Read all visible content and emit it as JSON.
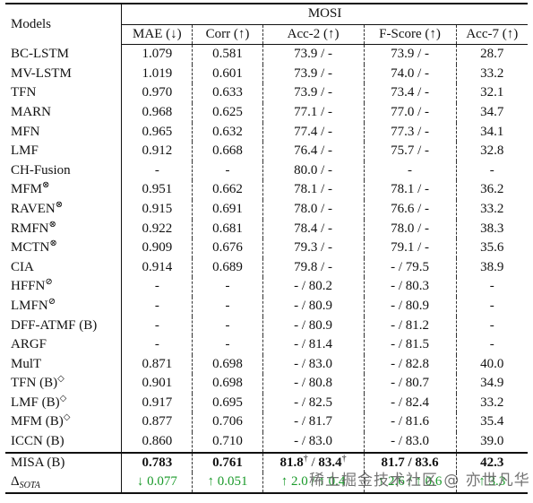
{
  "header": {
    "models": "Models",
    "group": "MOSI",
    "columns": [
      "MAE (↓)",
      "Corr (↑)",
      "Acc-2 (↑)",
      "F-Score (↑)",
      "Acc-7 (↑)"
    ]
  },
  "rows": [
    {
      "model": "BC-LSTM",
      "sup": "",
      "cells": [
        "1.079",
        "0.581",
        "73.9 / -",
        "73.9 / -",
        "28.7"
      ]
    },
    {
      "model": "MV-LSTM",
      "sup": "",
      "cells": [
        "1.019",
        "0.601",
        "73.9 / -",
        "74.0 / -",
        "33.2"
      ]
    },
    {
      "model": "TFN",
      "sup": "",
      "cells": [
        "0.970",
        "0.633",
        "73.9 / -",
        "73.4 / -",
        "32.1"
      ]
    },
    {
      "model": "MARN",
      "sup": "",
      "cells": [
        "0.968",
        "0.625",
        "77.1 / -",
        "77.0 / -",
        "34.7"
      ]
    },
    {
      "model": "MFN",
      "sup": "",
      "cells": [
        "0.965",
        "0.632",
        "77.4 / -",
        "77.3 / -",
        "34.1"
      ]
    },
    {
      "model": "LMF",
      "sup": "",
      "cells": [
        "0.912",
        "0.668",
        "76.4 / -",
        "75.7 / -",
        "32.8"
      ]
    },
    {
      "model": "CH-Fusion",
      "sup": "",
      "cells": [
        "-",
        "-",
        "80.0 / -",
        "-",
        "-"
      ]
    },
    {
      "model": "MFM",
      "sup": "⊗",
      "cells": [
        "0.951",
        "0.662",
        "78.1 / -",
        "78.1 / -",
        "36.2"
      ]
    },
    {
      "model": "RAVEN",
      "sup": "⊗",
      "cells": [
        "0.915",
        "0.691",
        "78.0 / -",
        "76.6 / -",
        "33.2"
      ]
    },
    {
      "model": "RMFN",
      "sup": "⊗",
      "cells": [
        "0.922",
        "0.681",
        "78.4 / -",
        "78.0 / -",
        "38.3"
      ]
    },
    {
      "model": "MCTN",
      "sup": "⊗",
      "cells": [
        "0.909",
        "0.676",
        "79.3 / -",
        "79.1 / -",
        "35.6"
      ]
    },
    {
      "model": "CIA",
      "sup": "",
      "cells": [
        "0.914",
        "0.689",
        "79.8 / -",
        "- / 79.5",
        "38.9"
      ]
    },
    {
      "model": "HFFN",
      "sup": "⊘",
      "cells": [
        "-",
        "-",
        "- / 80.2",
        "- / 80.3",
        "-"
      ]
    },
    {
      "model": "LMFN",
      "sup": "⊘",
      "cells": [
        "-",
        "-",
        "- / 80.9",
        "- / 80.9",
        "-"
      ]
    },
    {
      "model": "DFF-ATMF (B)",
      "sup": "",
      "cells": [
        "-",
        "-",
        "- / 80.9",
        "- / 81.2",
        "-"
      ]
    },
    {
      "model": "ARGF",
      "sup": "",
      "cells": [
        "-",
        "-",
        "- / 81.4",
        "- / 81.5",
        "-"
      ]
    },
    {
      "model": "MulT",
      "sup": "",
      "cells": [
        "0.871",
        "0.698",
        "- / 83.0",
        "- / 82.8",
        "40.0"
      ]
    },
    {
      "model": "TFN (B)",
      "sup": "◇",
      "cells": [
        "0.901",
        "0.698",
        "- / 80.8",
        "- / 80.7",
        "34.9"
      ]
    },
    {
      "model": "LMF (B)",
      "sup": "◇",
      "cells": [
        "0.917",
        "0.695",
        "- / 82.5",
        "- / 82.4",
        "33.2"
      ]
    },
    {
      "model": "MFM (B)",
      "sup": "◇",
      "cells": [
        "0.877",
        "0.706",
        "- / 81.7",
        "- / 81.6",
        "35.4"
      ]
    },
    {
      "model": "ICCN (B)",
      "sup": "",
      "cells": [
        "0.860",
        "0.710",
        "- / 83.0",
        "- / 83.0",
        "39.0"
      ]
    }
  ],
  "misa": {
    "model": "MISA (B)",
    "mae": "0.783",
    "corr": "0.761",
    "acc2_a": "81.8",
    "acc2_a_mark": "†",
    "acc2_sep": " / ",
    "acc2_b": "83.4",
    "acc2_b_mark": "†",
    "fscore": "81.7 / 83.6",
    "acc7": "42.3"
  },
  "delta": {
    "label": "Δ",
    "label_sub": "SOTA",
    "cells": [
      "↓ 0.077",
      "↑ 0.051",
      "↑ 2.0 / ↑ 0.4",
      "↑ 2.6 / ↑ 0.6",
      "↑ 3.3"
    ]
  },
  "watermark": "稀土掘金技术社区 @ 亦世凡华",
  "colors": {
    "delta": "#1a9a2a",
    "text": "#111111"
  }
}
